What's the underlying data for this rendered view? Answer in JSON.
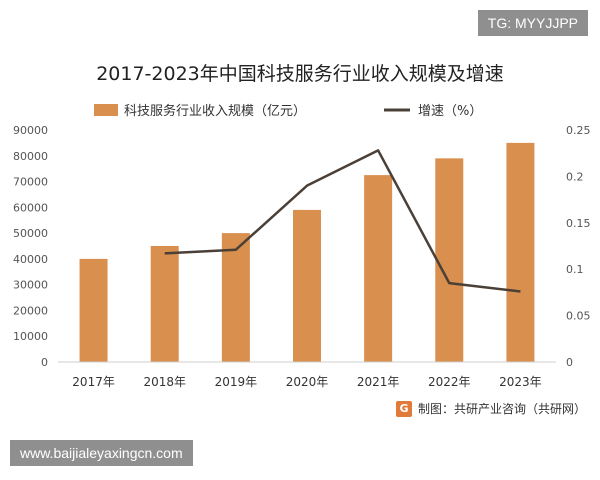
{
  "tag_text": "TG: MYYJJPP",
  "footer_url": "www.baijialeyaxingcn.com",
  "source_text": "制图：共研产业咨询（共研网）",
  "source_logo_letter": "G",
  "colors": {
    "bar": "#d98f4e",
    "line": "#4a4038",
    "axis_text": "#555555",
    "title": "#222222"
  },
  "chart_data": {
    "type": "bar",
    "title": "2017-2023年中国科技服务行业收入规模及增速",
    "categories": [
      "2017年",
      "2018年",
      "2019年",
      "2020年",
      "2021年",
      "2022年",
      "2023年"
    ],
    "series": [
      {
        "name": "科技服务行业收入规模（亿元）",
        "type": "bar",
        "axis": "left",
        "values": [
          40000,
          45000,
          50000,
          59000,
          72500,
          79000,
          85000
        ]
      },
      {
        "name": "增速（%）",
        "type": "line",
        "axis": "right",
        "values": [
          null,
          0.117,
          0.121,
          0.19,
          0.228,
          0.085,
          0.076
        ]
      }
    ],
    "y_left": {
      "min": 0,
      "max": 90000,
      "ticks": [
        "0",
        "10000",
        "20000",
        "30000",
        "40000",
        "50000",
        "60000",
        "70000",
        "80000",
        "90000"
      ]
    },
    "y_right": {
      "min": 0,
      "max": 0.25,
      "ticks": [
        "0",
        "0.05",
        "0.1",
        "0.15",
        "0.2",
        "0.25"
      ]
    },
    "legend_position": "top",
    "grid": false
  }
}
